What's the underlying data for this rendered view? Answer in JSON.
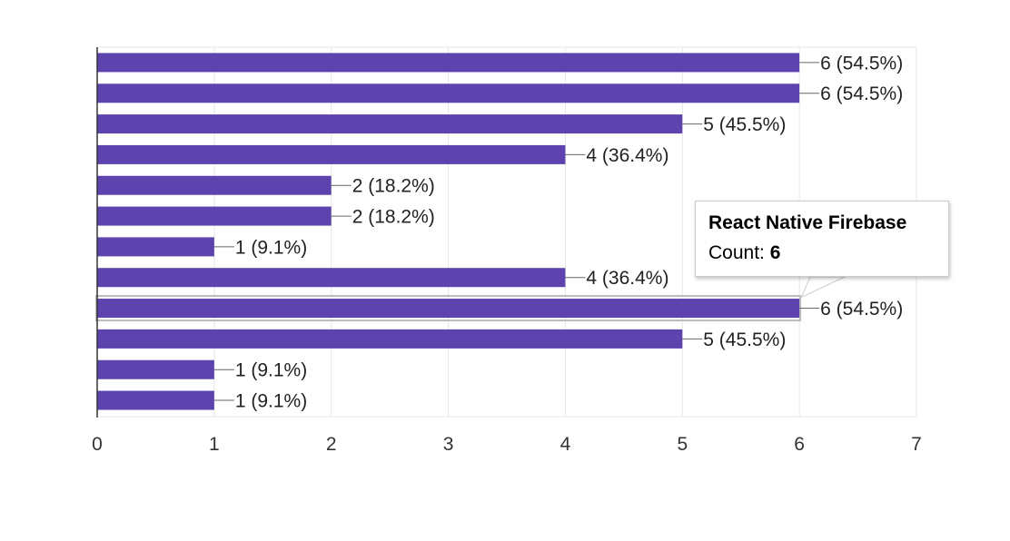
{
  "colors": {
    "bar": "#5c43ad",
    "bar_highlight": "#5c43ad",
    "grid": "#e6e6e6",
    "axis": "#333333",
    "leader": "#666666"
  },
  "chart_data": {
    "type": "bar",
    "orientation": "horizontal",
    "title": "",
    "xlabel": "",
    "ylabel": "",
    "xlim": [
      0,
      7
    ],
    "x_ticks": [
      0,
      1,
      2,
      3,
      4,
      5,
      6,
      7
    ],
    "grid": true,
    "categories": [
      "",
      "",
      "",
      "",
      "",
      "",
      "",
      "",
      "React Native Firebase",
      "",
      "",
      ""
    ],
    "values": [
      6,
      6,
      5,
      4,
      2,
      2,
      1,
      4,
      6,
      5,
      1,
      1
    ],
    "data_labels": [
      "6 (54.5%)",
      "6 (54.5%)",
      "5 (45.5%)",
      "4 (36.4%)",
      "2 (18.2%)",
      "2 (18.2%)",
      "1 (9.1%)",
      "4 (36.4%)",
      "6 (54.5%)",
      "5 (45.5%)",
      "1 (9.1%)",
      "1 (9.1%)"
    ],
    "highlighted_index": 8
  },
  "tooltip": {
    "title": "React Native Firebase",
    "count_label": "Count: ",
    "count_value": "6"
  }
}
